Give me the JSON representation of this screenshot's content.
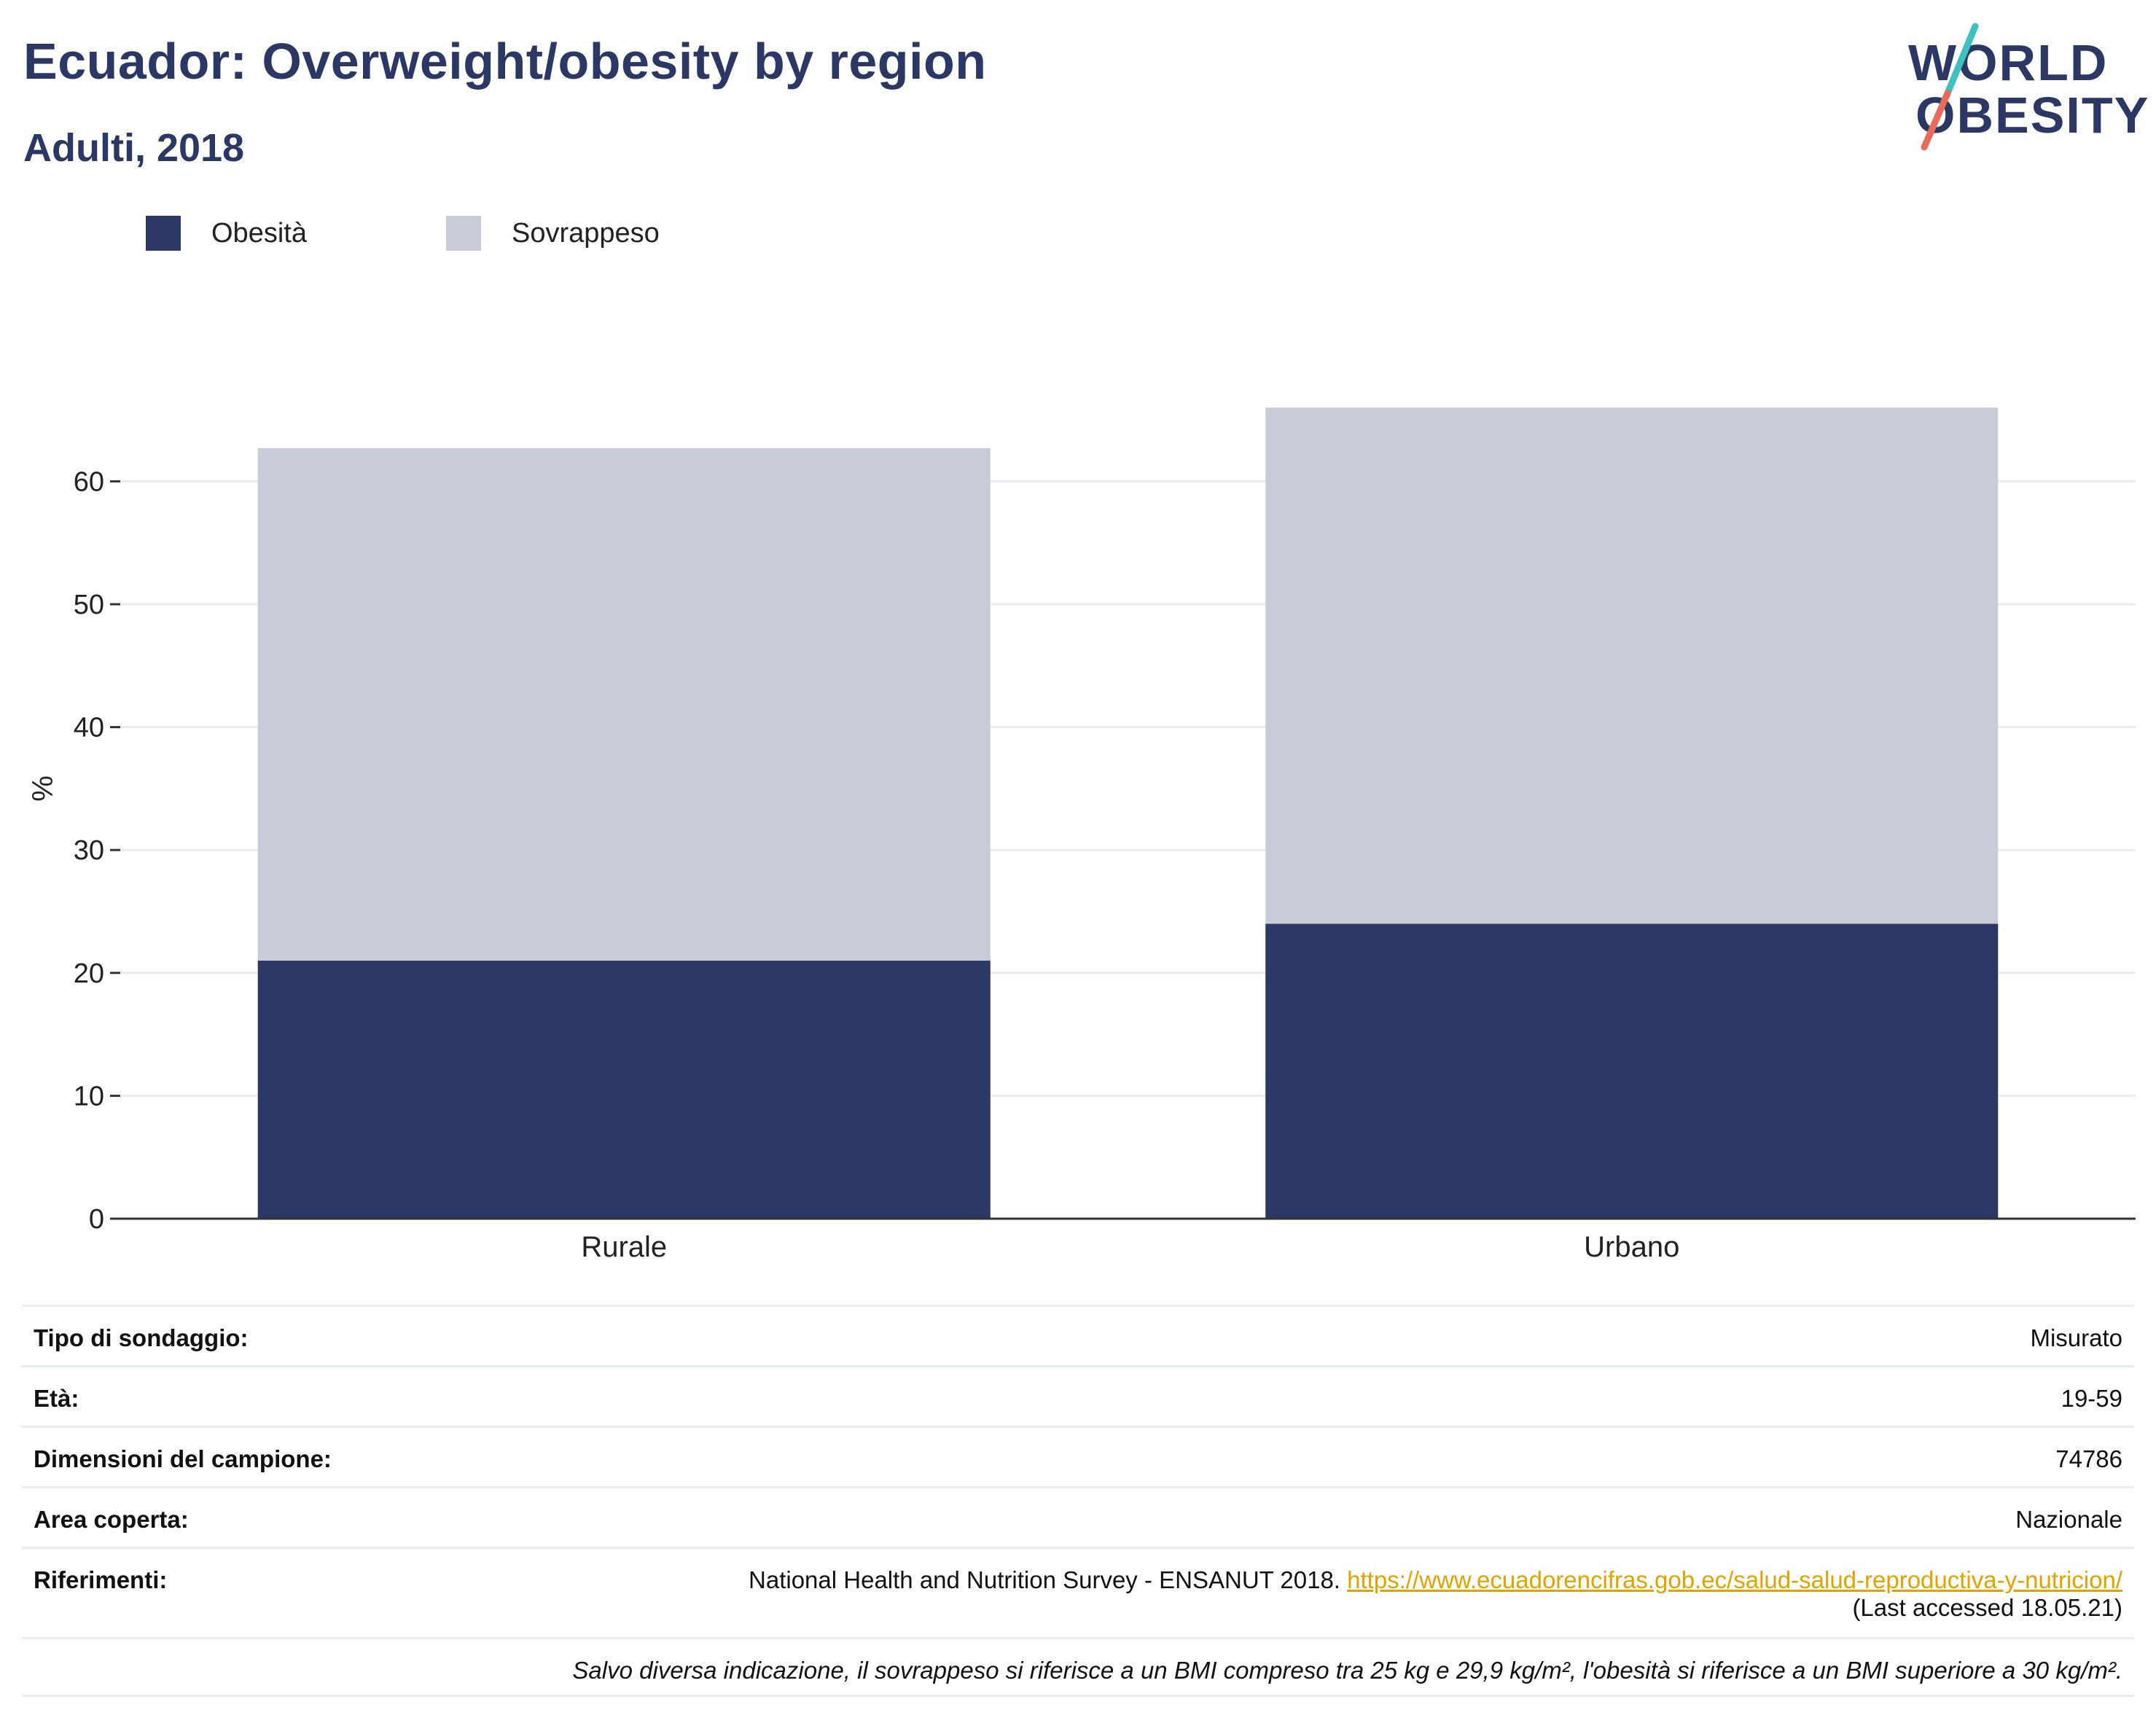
{
  "header": {
    "title": "Ecuador: Overweight/obesity by region",
    "subtitle": "Adulti, 2018"
  },
  "logo": {
    "line1": "WORLD",
    "line2": "OBESITY",
    "slash_colors": [
      "#3cc1c0",
      "#e86a5b"
    ]
  },
  "colors": {
    "obesity": "#2b3764",
    "overweight": "#c9ccd8",
    "grid": "#e9ecf2",
    "axis": "#333333",
    "link": "#e2a300"
  },
  "chart_data": {
    "type": "bar",
    "stacked": true,
    "categories": [
      "Rurale",
      "Urbano"
    ],
    "series": [
      {
        "name": "Obesità",
        "values": [
          21.0,
          24.0
        ]
      },
      {
        "name": "Sovrappeso",
        "values": [
          41.7,
          42.0
        ]
      }
    ],
    "ylabel": "%",
    "xlabel": "",
    "ylim": [
      0,
      70
    ],
    "yticks": [
      0,
      10,
      20,
      30,
      40,
      50,
      60
    ],
    "grid": true,
    "legend_position": "top-left"
  },
  "info": {
    "survey_type": {
      "label": "Tipo di sondaggio:",
      "value": "Misurato"
    },
    "age": {
      "label": "Età:",
      "value": "19-59"
    },
    "sample_size": {
      "label": "Dimensioni del campione:",
      "value": "74786"
    },
    "area": {
      "label": "Area coperta:",
      "value": "Nazionale"
    },
    "references": {
      "label": "Riferimenti:",
      "text": "National Health and Nutrition Survey - ENSANUT 2018. ",
      "link": "https://www.ecuadorencifras.gob.ec/salud-salud-reproductiva-y-nutricion/",
      "accessed": "(Last accessed 18.05.21)"
    },
    "note": "Salvo diversa indicazione, il sovrappeso si riferisce a un BMI compreso tra 25 kg e 29,9 kg/m², l'obesità si riferisce a un BMI superiore a 30 kg/m²."
  }
}
